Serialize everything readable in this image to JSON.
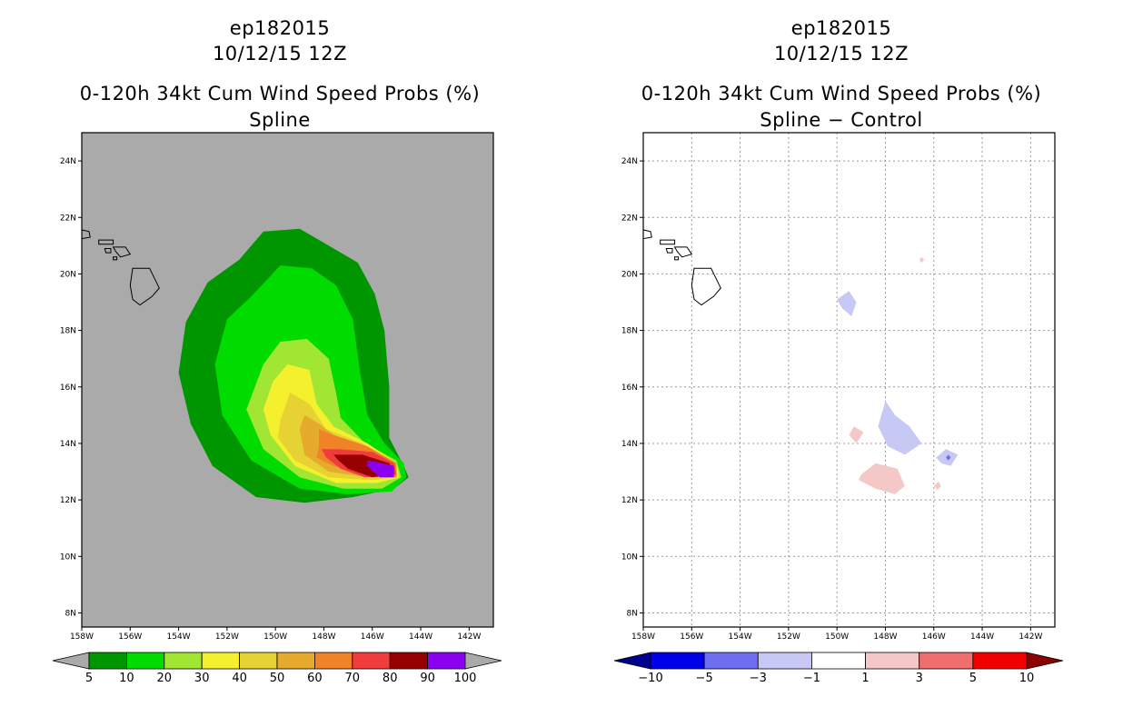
{
  "chart_data": [
    {
      "type": "contour-map",
      "storm_id": "ep182015",
      "date": "10/12/15 12Z",
      "title": "0-120h 34kt Cum Wind Speed Probs (%)",
      "subtitle": "Spline",
      "lon_range": [
        -158,
        -141
      ],
      "lat_range": [
        7.5,
        25
      ],
      "x_ticks": [
        "158W",
        "156W",
        "154W",
        "152W",
        "150W",
        "148W",
        "146W",
        "144W",
        "142W"
      ],
      "y_ticks": [
        "8N",
        "10N",
        "12N",
        "14N",
        "16N",
        "18N",
        "20N",
        "22N",
        "24N"
      ],
      "grid": false,
      "background_color": "#aaaaaa",
      "colorbar": {
        "labels": [
          "5",
          "10",
          "20",
          "30",
          "40",
          "50",
          "60",
          "70",
          "80",
          "90",
          "100"
        ],
        "colors": [
          "#009600",
          "#00dc00",
          "#a0e632",
          "#f5f02d",
          "#e6d232",
          "#e6aa2d",
          "#f08228",
          "#f03c3c",
          "#960000",
          "#8c00f0"
        ],
        "end_left": "#aaaaaa",
        "end_right": "#aaaaaa"
      },
      "contours": [
        {
          "level": "5-10",
          "color": "#009600",
          "poly": [
            [
              -151.5,
              20.5
            ],
            [
              -150.5,
              21.5
            ],
            [
              -149.0,
              21.6
            ],
            [
              -147.8,
              21.0
            ],
            [
              -146.6,
              20.4
            ],
            [
              -145.9,
              19.3
            ],
            [
              -145.5,
              18.0
            ],
            [
              -145.3,
              16.0
            ],
            [
              -145.3,
              14.2
            ],
            [
              -144.7,
              13.2
            ],
            [
              -144.5,
              12.8
            ],
            [
              -145.1,
              12.4
            ],
            [
              -146.8,
              12.1
            ],
            [
              -148.8,
              11.9
            ],
            [
              -150.8,
              12.1
            ],
            [
              -152.6,
              13.2
            ],
            [
              -153.5,
              14.7
            ],
            [
              -154.0,
              16.5
            ],
            [
              -153.7,
              18.3
            ],
            [
              -152.8,
              19.7
            ]
          ]
        },
        {
          "level": "10-20",
          "color": "#00dc00",
          "poly": [
            [
              -151.0,
              19.2
            ],
            [
              -149.8,
              20.3
            ],
            [
              -148.5,
              20.2
            ],
            [
              -147.5,
              19.6
            ],
            [
              -146.8,
              18.4
            ],
            [
              -146.5,
              16.5
            ],
            [
              -146.2,
              15.0
            ],
            [
              -145.5,
              14.0
            ],
            [
              -144.7,
              13.3
            ],
            [
              -144.6,
              12.8
            ],
            [
              -145.2,
              12.3
            ],
            [
              -147.0,
              12.2
            ],
            [
              -149.0,
              12.4
            ],
            [
              -151.0,
              13.4
            ],
            [
              -152.2,
              15.0
            ],
            [
              -152.5,
              16.8
            ],
            [
              -152.0,
              18.4
            ]
          ]
        },
        {
          "level": "20-30",
          "color": "#a0e632",
          "poly": [
            [
              -150.5,
              16.8
            ],
            [
              -149.8,
              17.6
            ],
            [
              -148.7,
              17.7
            ],
            [
              -147.8,
              17.0
            ],
            [
              -147.5,
              15.8
            ],
            [
              -147.3,
              14.9
            ],
            [
              -146.3,
              14.0
            ],
            [
              -145.0,
              13.4
            ],
            [
              -144.8,
              12.8
            ],
            [
              -145.6,
              12.4
            ],
            [
              -147.2,
              12.4
            ],
            [
              -149.0,
              12.8
            ],
            [
              -150.5,
              13.8
            ],
            [
              -151.2,
              15.2
            ]
          ]
        },
        {
          "level": "30-40",
          "color": "#f5f02d",
          "poly": [
            [
              -150.1,
              16.2
            ],
            [
              -149.5,
              16.8
            ],
            [
              -148.6,
              16.6
            ],
            [
              -148.3,
              15.4
            ],
            [
              -147.6,
              14.6
            ],
            [
              -146.2,
              14.0
            ],
            [
              -145.0,
              13.3
            ],
            [
              -144.9,
              12.8
            ],
            [
              -145.8,
              12.6
            ],
            [
              -147.5,
              12.6
            ],
            [
              -149.2,
              13.2
            ],
            [
              -150.2,
              14.3
            ],
            [
              -150.5,
              15.2
            ]
          ]
        },
        {
          "level": "40-50",
          "color": "#e6d232",
          "poly": [
            [
              -149.8,
              14.8
            ],
            [
              -149.4,
              15.8
            ],
            [
              -148.6,
              15.4
            ],
            [
              -147.9,
              14.5
            ],
            [
              -146.4,
              14.0
            ],
            [
              -145.0,
              13.2
            ],
            [
              -145.0,
              12.8
            ],
            [
              -146.0,
              12.7
            ],
            [
              -147.8,
              12.8
            ],
            [
              -149.2,
              13.4
            ],
            [
              -149.9,
              14.2
            ]
          ]
        },
        {
          "level": "50-60",
          "color": "#e6aa2d",
          "poly": [
            [
              -149.0,
              14.5
            ],
            [
              -148.8,
              15.0
            ],
            [
              -148.2,
              14.7
            ],
            [
              -147.3,
              14.1
            ],
            [
              -146.0,
              13.8
            ],
            [
              -145.0,
              13.2
            ],
            [
              -145.0,
              12.8
            ],
            [
              -146.2,
              12.8
            ],
            [
              -147.8,
              13.0
            ],
            [
              -148.8,
              13.6
            ]
          ]
        },
        {
          "level": "60-70",
          "color": "#f08228",
          "poly": [
            [
              -148.2,
              13.9
            ],
            [
              -148.2,
              14.5
            ],
            [
              -147.6,
              14.3
            ],
            [
              -146.2,
              13.9
            ],
            [
              -145.0,
              13.3
            ],
            [
              -145.0,
              12.8
            ],
            [
              -146.3,
              12.9
            ],
            [
              -147.6,
              13.2
            ],
            [
              -148.3,
              13.5
            ]
          ]
        },
        {
          "level": "70-80",
          "color": "#f03c3c",
          "poly": [
            [
              -147.9,
              13.5
            ],
            [
              -148.1,
              13.8
            ],
            [
              -147.4,
              13.8
            ],
            [
              -146.0,
              13.7
            ],
            [
              -145.1,
              13.3
            ],
            [
              -145.0,
              12.9
            ],
            [
              -146.3,
              12.8
            ],
            [
              -147.3,
              13.1
            ]
          ]
        },
        {
          "level": "80-90",
          "color": "#960000",
          "poly": [
            [
              -147.4,
              13.4
            ],
            [
              -147.6,
              13.6
            ],
            [
              -146.4,
              13.6
            ],
            [
              -145.3,
              13.3
            ],
            [
              -145.1,
              12.9
            ],
            [
              -146.0,
              12.8
            ],
            [
              -147.0,
              13.1
            ]
          ]
        },
        {
          "level": "90-100",
          "color": "#8c00f0",
          "poly": [
            [
              -146.2,
              13.2
            ],
            [
              -146.2,
              13.4
            ],
            [
              -145.6,
              13.3
            ],
            [
              -145.1,
              13.2
            ],
            [
              -145.1,
              12.8
            ],
            [
              -145.7,
              12.8
            ]
          ]
        }
      ]
    },
    {
      "type": "contour-map",
      "storm_id": "ep182015",
      "date": "10/12/15 12Z",
      "title": "0-120h 34kt Cum Wind Speed Probs (%)",
      "subtitle": "Spline − Control",
      "lon_range": [
        -158,
        -141
      ],
      "lat_range": [
        7.5,
        25
      ],
      "x_ticks": [
        "158W",
        "156W",
        "154W",
        "152W",
        "150W",
        "148W",
        "146W",
        "144W",
        "142W"
      ],
      "y_ticks": [
        "8N",
        "10N",
        "12N",
        "14N",
        "16N",
        "18N",
        "20N",
        "22N",
        "24N"
      ],
      "grid": true,
      "background_color": "#ffffff",
      "colorbar": {
        "labels": [
          "−10",
          "−5",
          "−3",
          "−1",
          "1",
          "3",
          "5",
          "10"
        ],
        "colors": [
          "#0000e6",
          "#6e6ef0",
          "#c8c8f5",
          "#ffffff",
          "#f5c8c8",
          "#f06e6e",
          "#f00000"
        ],
        "end_left": "#00008c",
        "end_right": "#8c0000"
      },
      "contours": [
        {
          "level": "-3 to -1",
          "color": "#c8c8f5",
          "poly": [
            [
              -150.0,
              19.1
            ],
            [
              -149.5,
              19.4
            ],
            [
              -149.2,
              19.0
            ],
            [
              -149.4,
              18.5
            ],
            [
              -149.8,
              18.8
            ]
          ]
        },
        {
          "level": "1 to 3",
          "color": "#f5c8c8",
          "poly": [
            [
              -146.6,
              20.5
            ],
            [
              -146.5,
              20.6
            ],
            [
              -146.4,
              20.5
            ],
            [
              -146.5,
              20.4
            ]
          ]
        },
        {
          "level": "-3 to -1",
          "color": "#c8c8f5",
          "poly": [
            [
              -148.3,
              14.6
            ],
            [
              -148.0,
              15.5
            ],
            [
              -147.6,
              15.0
            ],
            [
              -147.0,
              14.6
            ],
            [
              -146.5,
              14.0
            ],
            [
              -147.2,
              13.6
            ],
            [
              -147.9,
              13.9
            ]
          ]
        },
        {
          "level": "1 to 3",
          "color": "#f5c8c8",
          "poly": [
            [
              -149.5,
              14.3
            ],
            [
              -149.3,
              14.6
            ],
            [
              -148.9,
              14.4
            ],
            [
              -149.2,
              14.0
            ]
          ]
        },
        {
          "level": "-3 to -1",
          "color": "#c8c8f5",
          "poly": [
            [
              -145.9,
              13.5
            ],
            [
              -145.5,
              13.8
            ],
            [
              -145.0,
              13.6
            ],
            [
              -145.3,
              13.2
            ],
            [
              -145.7,
              13.3
            ]
          ]
        },
        {
          "level": "-5 to -3",
          "color": "#6e6ef0",
          "poly": [
            [
              -145.5,
              13.5
            ],
            [
              -145.4,
              13.6
            ],
            [
              -145.3,
              13.5
            ],
            [
              -145.4,
              13.4
            ]
          ]
        },
        {
          "level": "1 to 3",
          "color": "#f5c8c8",
          "poly": [
            [
              -149.0,
              12.9
            ],
            [
              -148.4,
              13.3
            ],
            [
              -147.5,
              13.1
            ],
            [
              -147.2,
              12.5
            ],
            [
              -147.6,
              12.2
            ],
            [
              -148.4,
              12.4
            ],
            [
              -149.1,
              12.7
            ]
          ]
        },
        {
          "level": "1 to 3",
          "color": "#f5c8c8",
          "poly": [
            [
              -146.0,
              12.5
            ],
            [
              -145.8,
              12.65
            ],
            [
              -145.7,
              12.5
            ],
            [
              -145.85,
              12.35
            ]
          ]
        }
      ]
    }
  ],
  "islands": [
    {
      "name": "Hawaii",
      "color": "none",
      "poly": [
        [
          -155.9,
          20.2
        ],
        [
          -155.2,
          20.2
        ],
        [
          -154.8,
          19.5
        ],
        [
          -155.1,
          19.2
        ],
        [
          -155.6,
          18.9
        ],
        [
          -155.9,
          19.1
        ],
        [
          -156.0,
          19.6
        ]
      ]
    },
    {
      "name": "Maui",
      "color": "none",
      "poly": [
        [
          -156.7,
          20.95
        ],
        [
          -156.2,
          20.95
        ],
        [
          -156.0,
          20.7
        ],
        [
          -156.4,
          20.6
        ],
        [
          -156.6,
          20.8
        ]
      ]
    },
    {
      "name": "Molokai",
      "color": "none",
      "poly": [
        [
          -157.3,
          21.2
        ],
        [
          -156.7,
          21.2
        ],
        [
          -156.7,
          21.05
        ],
        [
          -157.3,
          21.05
        ]
      ]
    },
    {
      "name": "Oahu",
      "color": "none",
      "poly": [
        [
          -158.2,
          21.6
        ],
        [
          -157.7,
          21.5
        ],
        [
          -157.65,
          21.3
        ],
        [
          -158.0,
          21.25
        ],
        [
          -158.25,
          21.45
        ]
      ]
    },
    {
      "name": "Lanai",
      "color": "none",
      "poly": [
        [
          -157.05,
          20.9
        ],
        [
          -156.8,
          20.9
        ],
        [
          -156.8,
          20.75
        ],
        [
          -157.0,
          20.75
        ]
      ]
    },
    {
      "name": "Kahoolawe",
      "color": "none",
      "poly": [
        [
          -156.7,
          20.6
        ],
        [
          -156.55,
          20.6
        ],
        [
          -156.55,
          20.5
        ],
        [
          -156.7,
          20.5
        ]
      ]
    }
  ]
}
